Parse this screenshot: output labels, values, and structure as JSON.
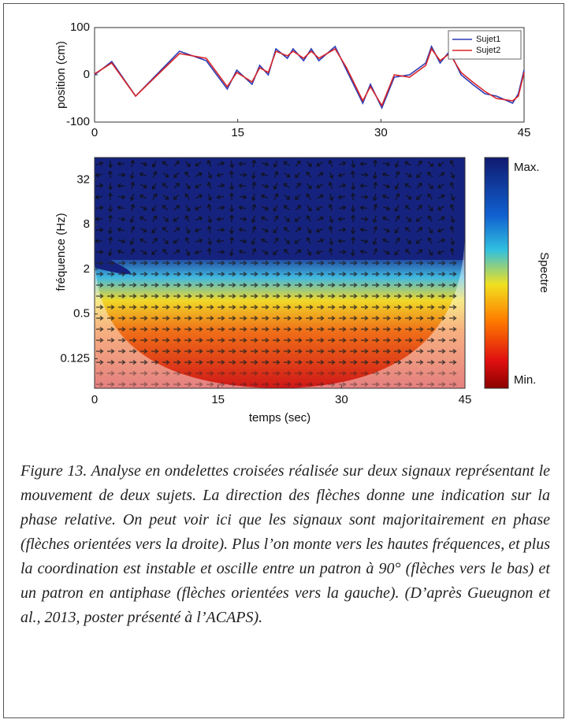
{
  "chart_data": [
    {
      "type": "line",
      "ylabel": "position (cm)",
      "xlim": [
        0,
        45
      ],
      "xticks": [
        0,
        15,
        30,
        45
      ],
      "ylim": [
        -100,
        100
      ],
      "yticks": [
        -100,
        0,
        100
      ],
      "legend": "top-right",
      "series": [
        {
          "name": "Sujet1",
          "color": "#2b3bb5",
          "x": [
            0,
            1.8,
            4.3,
            8.9,
            11.7,
            13.9,
            14.9,
            16.5,
            17.3,
            18.2,
            19,
            20.2,
            20.8,
            21.9,
            22.7,
            23.5,
            25.2,
            26.4,
            28.1,
            28.9,
            30.1,
            31.4,
            33,
            34.7,
            35.3,
            36.2,
            37.2,
            38.4,
            39.6,
            40.9,
            42.1,
            43.8,
            44.4,
            45
          ],
          "values": [
            0,
            28,
            -45,
            50,
            30,
            -30,
            10,
            -20,
            20,
            0,
            55,
            35,
            55,
            30,
            55,
            30,
            60,
            10,
            -60,
            -20,
            -70,
            -5,
            0,
            25,
            60,
            25,
            50,
            0,
            -20,
            -40,
            -45,
            -60,
            -40,
            10
          ]
        },
        {
          "name": "Sujet2",
          "color": "#d8262a",
          "x": [
            0,
            1.8,
            4.3,
            8.9,
            11.7,
            13.9,
            14.9,
            16.5,
            17.3,
            18.2,
            19,
            20.2,
            20.8,
            21.9,
            22.7,
            23.5,
            25.2,
            26.4,
            28.1,
            28.9,
            30.1,
            31.4,
            33,
            34.7,
            35.3,
            36.2,
            37.2,
            38.4,
            39.6,
            40.9,
            42.1,
            43.8,
            44.4,
            45
          ],
          "values": [
            2,
            25,
            -45,
            45,
            35,
            -25,
            5,
            -15,
            15,
            5,
            50,
            40,
            50,
            35,
            50,
            35,
            55,
            15,
            -55,
            -25,
            -65,
            0,
            -5,
            20,
            55,
            30,
            45,
            5,
            -15,
            -35,
            -50,
            -55,
            -45,
            5
          ]
        }
      ]
    },
    {
      "type": "heatmap",
      "xlabel": "temps (sec)",
      "ylabel": "fréquence (Hz)",
      "xlim": [
        0,
        45
      ],
      "xticks": [
        0,
        15,
        30,
        45
      ],
      "ylim": [
        0.05,
        64
      ],
      "ylog": true,
      "yticks": [
        0.125,
        0.5,
        2,
        8,
        32
      ],
      "colorbar": {
        "label": "Spectre",
        "max_label": "Max.",
        "min_label": "Min."
      }
    }
  ],
  "caption": "Figure 13. Analyse en ondelettes croisées réalisée sur deux signaux représentant le mouvement de deux sujets. La direction des flèches donne une indication sur la phase relative. On peut voir ici que les signaux sont majoritairement en phase (flèches orientées vers la droite). Plus l’on monte vers les hautes fréquences, et plus la coordination est instable et oscille entre un patron à 90° (flèches vers le bas) et un patron en antiphase (flèches orientées vers la gauche). (D’après Gueugnon et al., 2013, poster présenté à l’ACAPS)."
}
